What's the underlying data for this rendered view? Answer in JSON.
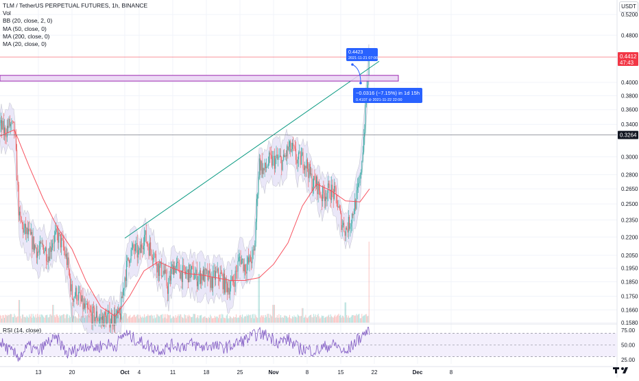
{
  "legend": {
    "symbol": "TLM / TetherUS PERPETUAL FUTURES, 1h, BINANCE",
    "vol": "Vol",
    "bb": "BB (20, close, 2, 0)",
    "ma50": "MA (50, close, 0)",
    "ma200": "MA (200, close, 0)",
    "ma20": "MA (20, close, 0)"
  },
  "rsi_label": "RSI (14, close)",
  "currency": "USDT",
  "price_tags": {
    "last_price": "0.4412",
    "countdown": "47:43",
    "crosshair_price": "0.3264",
    "current_color": "#f23645",
    "crosshair_color": "#131722"
  },
  "annotations": {
    "high_label": "0.4423",
    "high_date": "2021-11-21 07:00",
    "change_label": "−0.0316 (−7.15%) in 1d 15h",
    "change_detail": "0.4107 ⊘ 2021-11-22  22:00",
    "callout_color": "#2962ff"
  },
  "colors": {
    "up": "#26a69a",
    "down": "#ef5350",
    "ma": "#f7525f",
    "bb_fill": "#d8d3f3",
    "bb_line": "#b2b5be",
    "trendline": "#089981",
    "zone_fill": "#e9d3f3",
    "zone_border": "#9c27b0",
    "rsi_line": "#7e57c2",
    "rsi_band": "#f3effc"
  },
  "chart_data": {
    "type": "line",
    "y_scale": "log",
    "ylim": [
      0.158,
      0.55
    ],
    "y_ticks": [
      "0.5200",
      "0.4800",
      "0.4412",
      "0.4000",
      "0.3800",
      "0.3600",
      "0.3400",
      "0.3264",
      "0.3000",
      "0.2800",
      "0.2650",
      "0.2500",
      "0.2350",
      "0.2200",
      "0.2050",
      "0.1950",
      "0.1850",
      "0.1750",
      "0.1660",
      "0.1580"
    ],
    "x_tick_labels": [
      "13",
      "20",
      "Oct",
      "11",
      "Nov",
      "8",
      "15",
      "22",
      "Dec",
      "8"
    ],
    "x_tick_labels_full": [
      "13",
      "20",
      "Oct",
      "4",
      "11",
      "18",
      "25",
      "Nov",
      "8",
      "15",
      "22",
      "Dec",
      "8"
    ],
    "x_ticks_dates": [
      "2021-09-13",
      "2021-09-20",
      "2021-10-01",
      "2021-10-04",
      "2021-10-11",
      "2021-10-18",
      "2021-10-25",
      "2021-11-01",
      "2021-11-08",
      "2021-11-15",
      "2021-11-22",
      "2021-12-01",
      "2021-12-08"
    ],
    "series": [
      {
        "name": "TLM/USDT close",
        "x": [
          "2021-09-05",
          "2021-09-06",
          "2021-09-07",
          "2021-09-08",
          "2021-09-09",
          "2021-09-10",
          "2021-09-11",
          "2021-09-12",
          "2021-09-13",
          "2021-09-14",
          "2021-09-15",
          "2021-09-16",
          "2021-09-17",
          "2021-09-18",
          "2021-09-19",
          "2021-09-20",
          "2021-09-21",
          "2021-09-22",
          "2021-09-23",
          "2021-09-24",
          "2021-09-25",
          "2021-09-26",
          "2021-09-27",
          "2021-09-28",
          "2021-09-29",
          "2021-09-30",
          "2021-10-01",
          "2021-10-02",
          "2021-10-03",
          "2021-10-04",
          "2021-10-05",
          "2021-10-06",
          "2021-10-07",
          "2021-10-08",
          "2021-10-09",
          "2021-10-10",
          "2021-10-11",
          "2021-10-12",
          "2021-10-13",
          "2021-10-14",
          "2021-10-15",
          "2021-10-16",
          "2021-10-17",
          "2021-10-18",
          "2021-10-19",
          "2021-10-20",
          "2021-10-21",
          "2021-10-22",
          "2021-10-23",
          "2021-10-24",
          "2021-10-25",
          "2021-10-26",
          "2021-10-27",
          "2021-10-28",
          "2021-10-29",
          "2021-10-30",
          "2021-10-31",
          "2021-11-01",
          "2021-11-02",
          "2021-11-03",
          "2021-11-04",
          "2021-11-05",
          "2021-11-06",
          "2021-11-07",
          "2021-11-08",
          "2021-11-09",
          "2021-11-10",
          "2021-11-11",
          "2021-11-12",
          "2021-11-13",
          "2021-11-14",
          "2021-11-15",
          "2021-11-16",
          "2021-11-17",
          "2021-11-18",
          "2021-11-19",
          "2021-11-20",
          "2021-11-21"
        ],
        "values": [
          0.338,
          0.33,
          0.34,
          0.332,
          0.236,
          0.226,
          0.221,
          0.214,
          0.207,
          0.213,
          0.205,
          0.218,
          0.221,
          0.213,
          0.2,
          0.175,
          0.177,
          0.17,
          0.165,
          0.163,
          0.162,
          0.16,
          0.161,
          0.16,
          0.161,
          0.162,
          0.189,
          0.206,
          0.21,
          0.205,
          0.222,
          0.212,
          0.207,
          0.195,
          0.193,
          0.18,
          0.197,
          0.195,
          0.191,
          0.191,
          0.192,
          0.188,
          0.19,
          0.189,
          0.185,
          0.19,
          0.189,
          0.182,
          0.182,
          0.189,
          0.204,
          0.196,
          0.2,
          0.207,
          0.295,
          0.283,
          0.295,
          0.295,
          0.297,
          0.294,
          0.309,
          0.308,
          0.295,
          0.298,
          0.29,
          0.272,
          0.27,
          0.258,
          0.262,
          0.263,
          0.257,
          0.235,
          0.226,
          0.234,
          0.25,
          0.272,
          0.34,
          0.441
        ]
      },
      {
        "name": "MA (50, close, 0)",
        "x": [
          "2021-09-05",
          "2021-09-08",
          "2021-09-11",
          "2021-09-14",
          "2021-09-17",
          "2021-09-20",
          "2021-09-23",
          "2021-09-26",
          "2021-09-29",
          "2021-10-02",
          "2021-10-05",
          "2021-10-08",
          "2021-10-11",
          "2021-10-14",
          "2021-10-17",
          "2021-10-20",
          "2021-10-23",
          "2021-10-26",
          "2021-10-29",
          "2021-11-01",
          "2021-11-04",
          "2021-11-07",
          "2021-11-10",
          "2021-11-13",
          "2021-11-16",
          "2021-11-19",
          "2021-11-21"
        ],
        "values": [
          0.325,
          0.333,
          0.29,
          0.255,
          0.228,
          0.21,
          0.185,
          0.168,
          0.162,
          0.175,
          0.193,
          0.2,
          0.195,
          0.191,
          0.19,
          0.188,
          0.186,
          0.186,
          0.188,
          0.198,
          0.215,
          0.248,
          0.27,
          0.263,
          0.253,
          0.252,
          0.265
        ]
      }
    ],
    "rsi": {
      "name": "RSI (14, close)",
      "ylim": [
        18,
        82
      ],
      "levels": [
        30,
        50,
        70
      ],
      "tick_labels": [
        "75.00",
        "50.00",
        "25.00"
      ],
      "x": [
        "2021-09-05",
        "2021-09-07",
        "2021-09-09",
        "2021-09-11",
        "2021-09-13",
        "2021-09-15",
        "2021-09-17",
        "2021-09-19",
        "2021-09-21",
        "2021-09-23",
        "2021-09-25",
        "2021-09-27",
        "2021-09-29",
        "2021-10-01",
        "2021-10-03",
        "2021-10-05",
        "2021-10-07",
        "2021-10-09",
        "2021-10-11",
        "2021-10-13",
        "2021-10-15",
        "2021-10-17",
        "2021-10-19",
        "2021-10-21",
        "2021-10-23",
        "2021-10-25",
        "2021-10-27",
        "2021-10-29",
        "2021-10-31",
        "2021-11-02",
        "2021-11-04",
        "2021-11-06",
        "2021-11-08",
        "2021-11-10",
        "2021-11-12",
        "2021-11-14",
        "2021-11-16",
        "2021-11-18",
        "2021-11-20",
        "2021-11-21"
      ],
      "values": [
        55,
        40,
        30,
        48,
        38,
        55,
        60,
        35,
        42,
        50,
        45,
        52,
        48,
        70,
        60,
        52,
        45,
        42,
        50,
        48,
        52,
        46,
        50,
        45,
        48,
        55,
        62,
        70,
        65,
        55,
        60,
        45,
        42,
        40,
        48,
        50,
        35,
        55,
        70,
        78
      ]
    },
    "volume": {
      "scale_max": 1,
      "x": [
        "2021-09-09",
        "2021-09-16",
        "2021-09-20",
        "2021-10-01",
        "2021-10-29",
        "2021-11-01",
        "2021-11-07",
        "2021-11-16",
        "2021-11-21"
      ],
      "values": [
        0.28,
        0.22,
        0.25,
        0.12,
        0.6,
        0.22,
        0.18,
        0.25,
        1.0
      ]
    },
    "trendline": {
      "points": [
        {
          "x": "2021-10-01",
          "y": 0.219
        },
        {
          "x": "2021-11-23",
          "y": 0.434
        }
      ]
    },
    "zone": {
      "y_top": 0.411,
      "y_bottom": 0.402,
      "x_end": "2021-11-27"
    },
    "horizontal_lines": [
      0.4412,
      0.3264
    ]
  }
}
